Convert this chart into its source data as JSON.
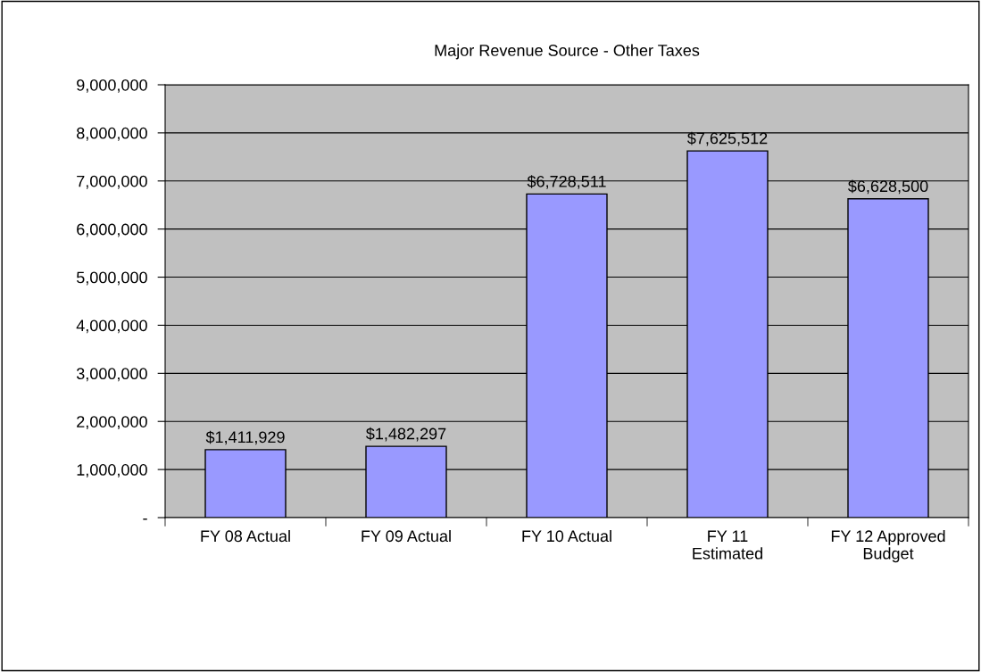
{
  "chart_data": {
    "type": "bar",
    "title": "Major Revenue Source - Other Taxes",
    "categories": [
      "FY 08 Actual",
      "FY 09 Actual",
      "FY 10 Actual",
      "FY 11\nEstimated",
      "FY 12 Approved\nBudget"
    ],
    "values": [
      1411929,
      1482297,
      6728511,
      7625512,
      6628500
    ],
    "value_labels": [
      "$1,411,929",
      "$1,482,297",
      "$6,728,511",
      "$7,625,512",
      "$6,628,500"
    ],
    "color": "#9999ff",
    "ylim": [
      0,
      9000000
    ],
    "yticks": [
      {
        "value": 0,
        "label": "-"
      },
      {
        "value": 1000000,
        "label": "1,000,000"
      },
      {
        "value": 2000000,
        "label": "2,000,000"
      },
      {
        "value": 3000000,
        "label": "3,000,000"
      },
      {
        "value": 4000000,
        "label": "4,000,000"
      },
      {
        "value": 5000000,
        "label": "5,000,000"
      },
      {
        "value": 6000000,
        "label": "6,000,000"
      },
      {
        "value": 7000000,
        "label": "7,000,000"
      },
      {
        "value": 8000000,
        "label": "8,000,000"
      },
      {
        "value": 9000000,
        "label": "9,000,000"
      }
    ],
    "grid": "y"
  }
}
